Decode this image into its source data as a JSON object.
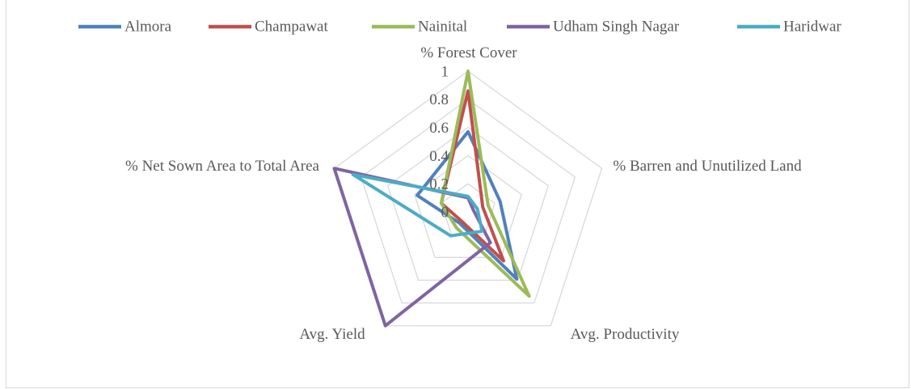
{
  "chart_data": {
    "type": "radar",
    "categories": [
      "% Forest Cover",
      "% Barren and Unutilized Land",
      "Avg. Productivity",
      "Avg. Yield",
      "% Net Sown Area to Total Area"
    ],
    "series": [
      {
        "name": "Almora",
        "color": "#4f81bd",
        "values": [
          0.57,
          0.24,
          0.59,
          0.1,
          0.38
        ]
      },
      {
        "name": "Champawat",
        "color": "#c0504d",
        "values": [
          0.86,
          0.11,
          0.43,
          0.08,
          0.2
        ]
      },
      {
        "name": "Nainital",
        "color": "#9bbb59",
        "values": [
          1,
          0.15,
          0.74,
          0.14,
          0.2
        ]
      },
      {
        "name": "Udham Singh Nagar",
        "color": "#8064a2",
        "values": [
          0.1,
          0.04,
          0.27,
          1,
          1
        ]
      },
      {
        "name": "Haridwar",
        "color": "#4bacc6",
        "values": [
          0.11,
          0.07,
          0.17,
          0.21,
          0.86
        ]
      }
    ],
    "ylim": [
      0,
      1
    ],
    "yticks": [
      0,
      0.2,
      0.4,
      0.6,
      0.8,
      1
    ],
    "grid": true,
    "legend": "top"
  }
}
